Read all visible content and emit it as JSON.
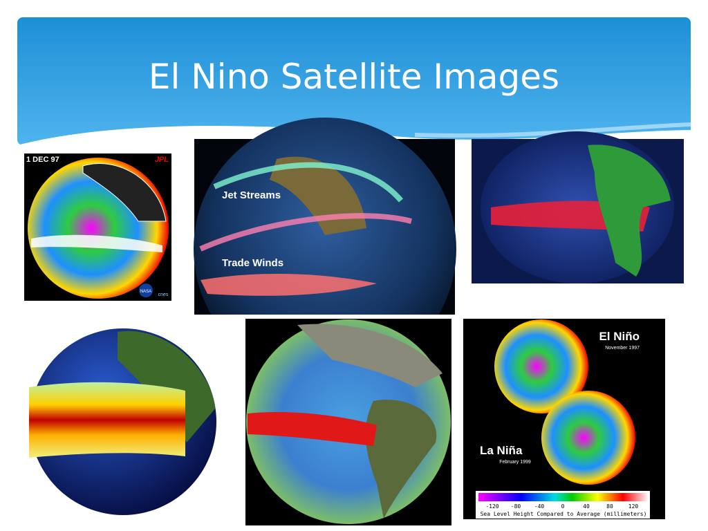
{
  "title": "El Nino Satellite Images",
  "images": [
    {
      "label": "1 DEC 97",
      "source": "JPL",
      "logos": [
        "NASA",
        "cnes"
      ]
    },
    {
      "labels": [
        "Jet Streams",
        "Trade Winds"
      ]
    },
    {},
    {},
    {},
    {
      "top_label": "El Niño",
      "top_date": "November 1997",
      "bottom_label": "La Niña",
      "bottom_date": "February 1999",
      "scale_ticks": [
        -120,
        -80,
        -40,
        0,
        40,
        80,
        120
      ],
      "scale_caption": "Sea Level Height Compared to Average (millimeters)"
    }
  ]
}
